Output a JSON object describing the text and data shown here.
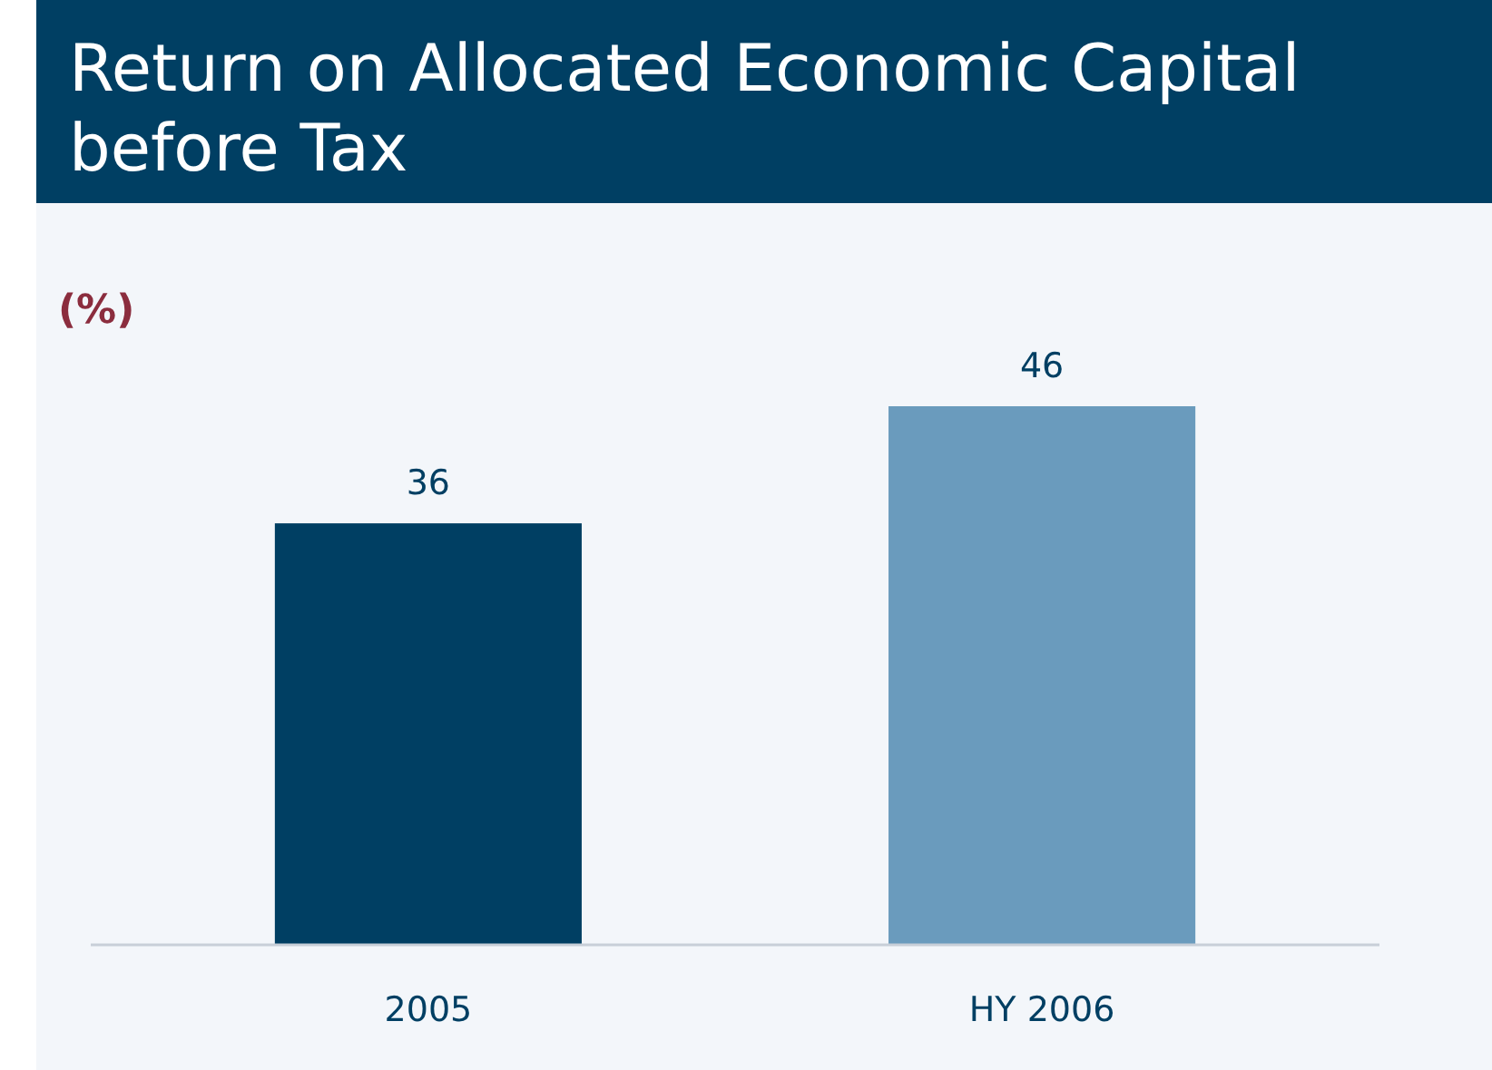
{
  "chart_data": {
    "type": "bar",
    "title": "Return on Allocated Economic Capital before Tax",
    "ylabel": "(%)",
    "categories": [
      "2005",
      "HY 2006"
    ],
    "values": [
      36,
      46
    ],
    "colors": [
      "#003f63",
      "#6a9bbd"
    ],
    "data_labels": true
  }
}
